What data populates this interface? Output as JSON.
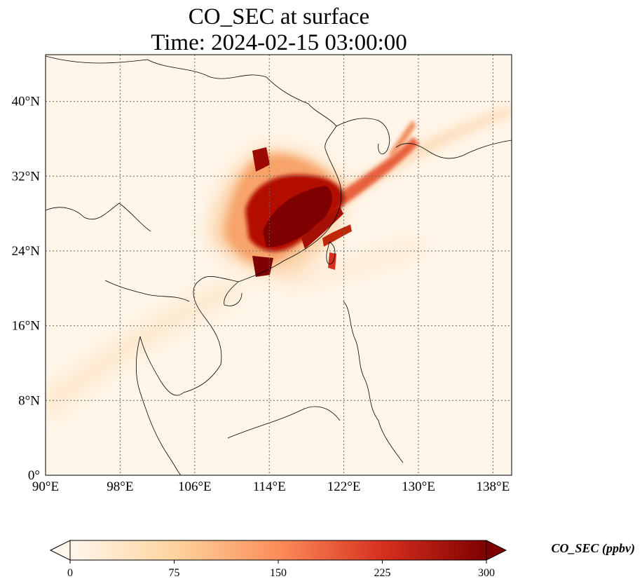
{
  "title": {
    "line1": "CO_SEC at surface",
    "line2": "Time: 2024-02-15 03:00:00"
  },
  "map": {
    "lon_range": [
      90,
      140
    ],
    "lat_range": [
      0,
      45
    ],
    "lon_ticks": [
      "90°E",
      "98°E",
      "106°E",
      "114°E",
      "122°E",
      "130°E",
      "138°E"
    ],
    "lat_ticks": [
      "0°",
      "8°N",
      "16°N",
      "24°N",
      "32°N",
      "40°N"
    ],
    "gridlines": true,
    "variable": "CO_SEC",
    "plume_core_region": "East China coast / Yangtze delta to Guangdong"
  },
  "colorbar": {
    "label": "CO_SEC (ppbv)",
    "ticks": [
      "0",
      "75",
      "150",
      "225",
      "300"
    ],
    "range": [
      0,
      300
    ],
    "colormap": "OrRd",
    "extend": "both",
    "colors": [
      "#fff7ec",
      "#fdd49e",
      "#fc8d59",
      "#d7301f",
      "#7f0000"
    ]
  }
}
